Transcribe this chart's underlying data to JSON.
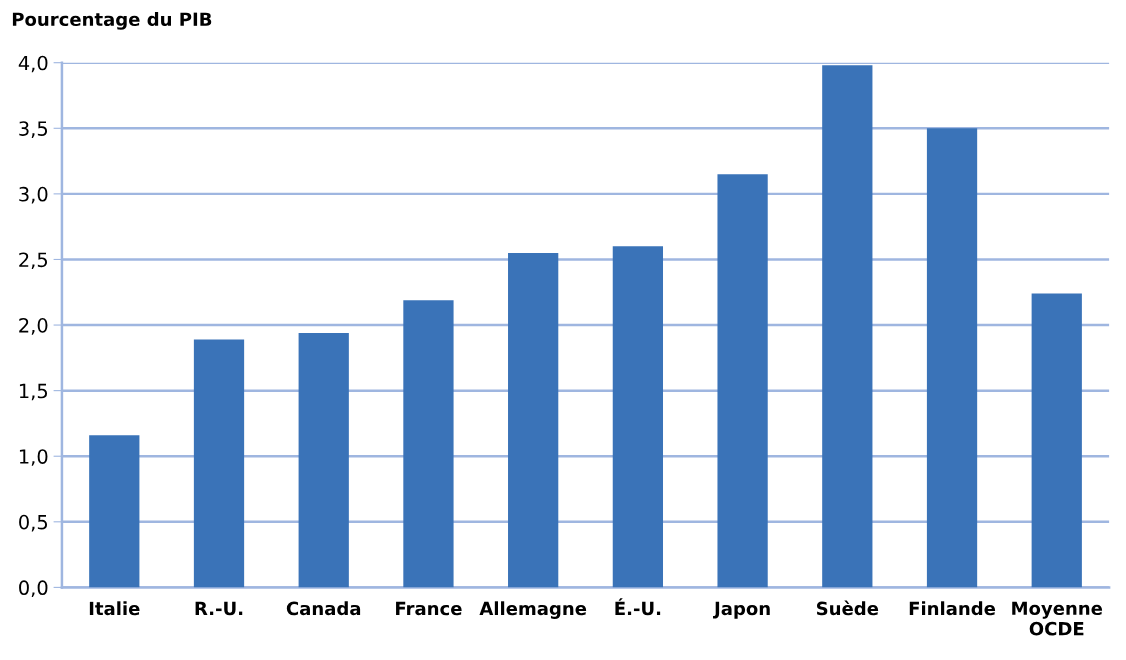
{
  "chart_data": {
    "type": "bar",
    "ylabel": "Pourcentage du PIB",
    "categories": [
      "Italie",
      "R.-U.",
      "Canada",
      "France",
      "Allemagne",
      "É.-U.",
      "Japon",
      "Suède",
      "Finlande",
      "Moyenne\nOCDE"
    ],
    "values": [
      1.16,
      1.89,
      1.94,
      2.19,
      2.55,
      2.6,
      3.15,
      3.98,
      3.5,
      2.24
    ],
    "color": "#3a73b8",
    "ylim": [
      0,
      4
    ],
    "yticks": [
      {
        "value": 0,
        "label": "0,0"
      },
      {
        "value": 0.5,
        "label": "0,5"
      },
      {
        "value": 1,
        "label": "1,0"
      },
      {
        "value": 1.5,
        "label": "1,5"
      },
      {
        "value": 2,
        "label": "2,0"
      },
      {
        "value": 2.5,
        "label": "2,5"
      },
      {
        "value": 3,
        "label": "3,0"
      },
      {
        "value": 3.5,
        "label": "3,5"
      },
      {
        "value": 4,
        "label": "4,0"
      }
    ],
    "grid": "y"
  }
}
